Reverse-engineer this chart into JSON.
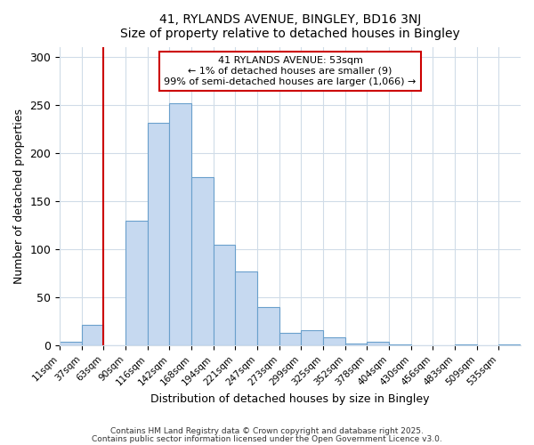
{
  "title1": "41, RYLANDS AVENUE, BINGLEY, BD16 3NJ",
  "title2": "Size of property relative to detached houses in Bingley",
  "xlabel": "Distribution of detached houses by size in Bingley",
  "ylabel": "Number of detached properties",
  "categories": [
    "11sqm",
    "37sqm",
    "63sqm",
    "90sqm",
    "116sqm",
    "142sqm",
    "168sqm",
    "194sqm",
    "221sqm",
    "247sqm",
    "273sqm",
    "299sqm",
    "325sqm",
    "352sqm",
    "378sqm",
    "404sqm",
    "430sqm",
    "456sqm",
    "483sqm",
    "509sqm",
    "535sqm"
  ],
  "values": [
    4,
    22,
    0,
    130,
    232,
    252,
    175,
    105,
    77,
    40,
    13,
    16,
    9,
    2,
    4,
    1,
    0,
    0,
    1,
    0,
    1
  ],
  "bar_color": "#c6d9f0",
  "bar_edge_color": "#6aa0cc",
  "marker_label": "41 RYLANDS AVENUE: 53sqm",
  "marker_line1": "← 1% of detached houses are smaller (9)",
  "marker_line2": "99% of semi-detached houses are larger (1,066) →",
  "annotation_box_color": "#ffffff",
  "annotation_border_color": "#cc0000",
  "red_line_color": "#cc0000",
  "ylim": [
    0,
    310
  ],
  "yticks": [
    0,
    50,
    100,
    150,
    200,
    250,
    300
  ],
  "footer1": "Contains HM Land Registry data © Crown copyright and database right 2025.",
  "footer2": "Contains public sector information licensed under the Open Government Licence v3.0.",
  "bg_color": "#ffffff",
  "grid_color": "#d0dce8"
}
